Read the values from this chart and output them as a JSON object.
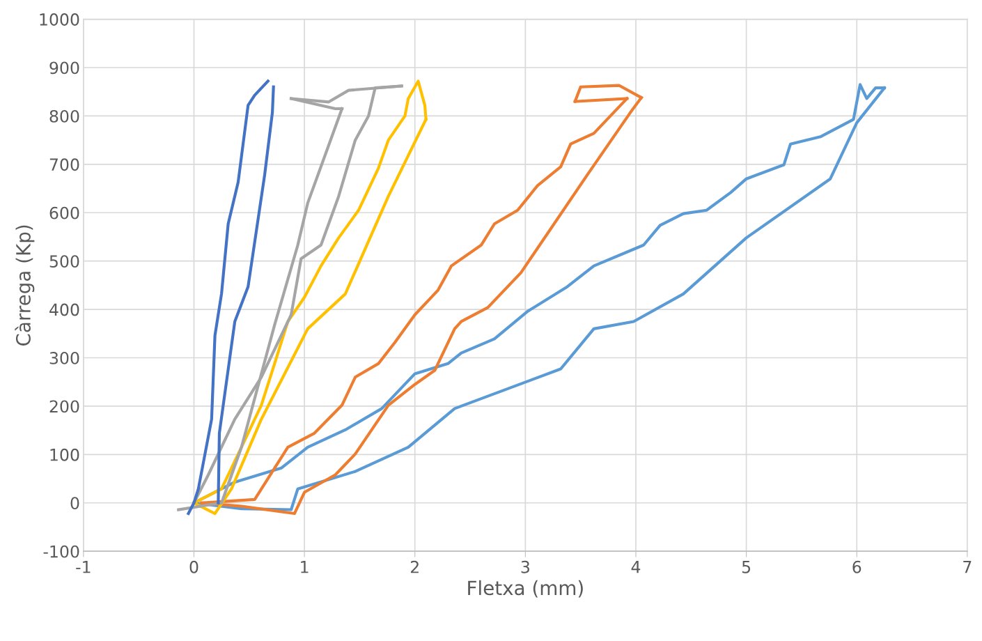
{
  "chart_data": {
    "type": "line",
    "xlabel": "Fletxa (mm)",
    "ylabel": "Càrrega (Kp)",
    "xlim": [
      -1,
      7
    ],
    "xticks": [
      -1,
      0,
      1,
      2,
      3,
      4,
      5,
      6,
      7
    ],
    "ylim": [
      -100,
      1000
    ],
    "yticks": [
      -100,
      0,
      100,
      200,
      300,
      400,
      500,
      600,
      700,
      800,
      900,
      1000
    ],
    "grid": true,
    "legend": false,
    "marker": "none",
    "line_style": "solid",
    "series": [
      {
        "color": "#5b9bd5",
        "x": [
          0,
          0.37,
          0.79,
          1.03,
          1.37,
          1.7,
          2.0,
          2.3,
          2.42,
          2.72,
          3.02,
          3.38,
          3.62,
          4.07,
          4.22,
          4.43,
          4.64,
          4.86,
          5.0,
          5.34,
          5.4,
          5.67,
          5.97,
          6.03,
          6.09,
          6.17,
          6.25
        ],
        "values": [
          0,
          43,
          72,
          115,
          151,
          195,
          267,
          288,
          310,
          339,
          396,
          447,
          490,
          533,
          574,
          598,
          605,
          642,
          670,
          699,
          742,
          757,
          793,
          865,
          836,
          858,
          858
        ]
      },
      {
        "color": "#5b9bd5",
        "x": [
          6.25,
          6.0,
          5.76,
          5.0,
          4.43,
          3.98,
          3.62,
          3.32,
          2.36,
          1.94,
          1.46,
          0.94,
          0.88,
          0.43,
          0
        ],
        "values": [
          858,
          786,
          670,
          548,
          432,
          375,
          360,
          277,
          195,
          115,
          65,
          29,
          -14,
          -12,
          0
        ]
      },
      {
        "color": "#ed7d31",
        "x": [
          0.07,
          0.55,
          0.85,
          1.09,
          1.34,
          1.46,
          1.67,
          1.82,
          2.0,
          2.21,
          2.33,
          2.6,
          2.72,
          2.93,
          3.11,
          3.32,
          3.41,
          3.62,
          3.92
        ],
        "values": [
          0,
          7,
          115,
          144,
          202,
          260,
          288,
          332,
          389,
          440,
          490,
          533,
          577,
          605,
          656,
          695,
          742,
          764,
          836
        ]
      },
      {
        "color": "#ed7d31",
        "x": [
          3.92,
          3.45
        ],
        "values": [
          836,
          830
        ]
      },
      {
        "color": "#ed7d31",
        "x": [
          3.45,
          3.5,
          3.85,
          4.05
        ],
        "values": [
          830,
          860,
          863,
          838
        ]
      },
      {
        "color": "#ed7d31",
        "x": [
          4.05,
          3.95,
          3.56,
          2.96,
          2.66,
          2.42,
          2.36,
          2.18,
          2.0,
          1.76,
          1.46,
          1.28,
          1.0,
          0.91,
          0.43,
          0.07
        ],
        "values": [
          838,
          807,
          678,
          476,
          404,
          375,
          360,
          274,
          245,
          202,
          101,
          58,
          22,
          -22,
          -7,
          0
        ]
      },
      {
        "color": "#ffc000",
        "x": [
          0,
          0.25,
          0.43,
          0.61,
          0.73,
          0.85,
          1.0,
          1.15,
          1.31,
          1.49,
          1.67,
          1.76,
          1.91,
          1.94,
          2.03,
          2.09,
          2.1
        ],
        "values": [
          0,
          29,
          115,
          202,
          288,
          375,
          425,
          490,
          548,
          605,
          692,
          750,
          800,
          836,
          872,
          822,
          793
        ]
      },
      {
        "color": "#ffc000",
        "x": [
          2.1,
          1.76,
          1.37,
          1.03,
          0.61,
          0.34,
          0.19,
          0
        ],
        "values": [
          793,
          634,
          432,
          360,
          173,
          29,
          -22,
          0
        ]
      },
      {
        "color": "#a5a5a5",
        "x": [
          0,
          0.13,
          0.37,
          0.61,
          0.88,
          0.97,
          1.15,
          1.31,
          1.46,
          1.58,
          1.64,
          1.88
        ],
        "values": [
          0,
          58,
          173,
          260,
          389,
          505,
          533,
          634,
          750,
          800,
          858,
          862
        ]
      },
      {
        "color": "#a5a5a5",
        "x": [
          1.88,
          1.4,
          1.22,
          0.88
        ],
        "values": [
          862,
          853,
          829,
          836
        ]
      },
      {
        "color": "#a5a5a5",
        "x": [
          0.88,
          1.28,
          1.34
        ],
        "values": [
          836,
          815,
          815
        ]
      },
      {
        "color": "#a5a5a5",
        "x": [
          1.34,
          1.03,
          0.94,
          0.73,
          0.43,
          0.25,
          -0.14
        ],
        "values": [
          815,
          620,
          533,
          368,
          115,
          0,
          -14
        ]
      },
      {
        "color": "#4472c4",
        "x": [
          -0.05,
          0,
          0.04,
          0.16,
          0.19,
          0.25,
          0.31,
          0.4,
          0.49,
          0.55,
          0.67
        ],
        "values": [
          -22,
          0,
          29,
          173,
          346,
          433,
          577,
          663,
          822,
          843,
          872
        ]
      },
      {
        "color": "#4472c4",
        "x": [
          0.72,
          0.71,
          0.64,
          0.49,
          0.37,
          0.23,
          0.22
        ],
        "values": [
          860,
          807,
          678,
          447,
          375,
          144,
          0
        ]
      }
    ]
  }
}
